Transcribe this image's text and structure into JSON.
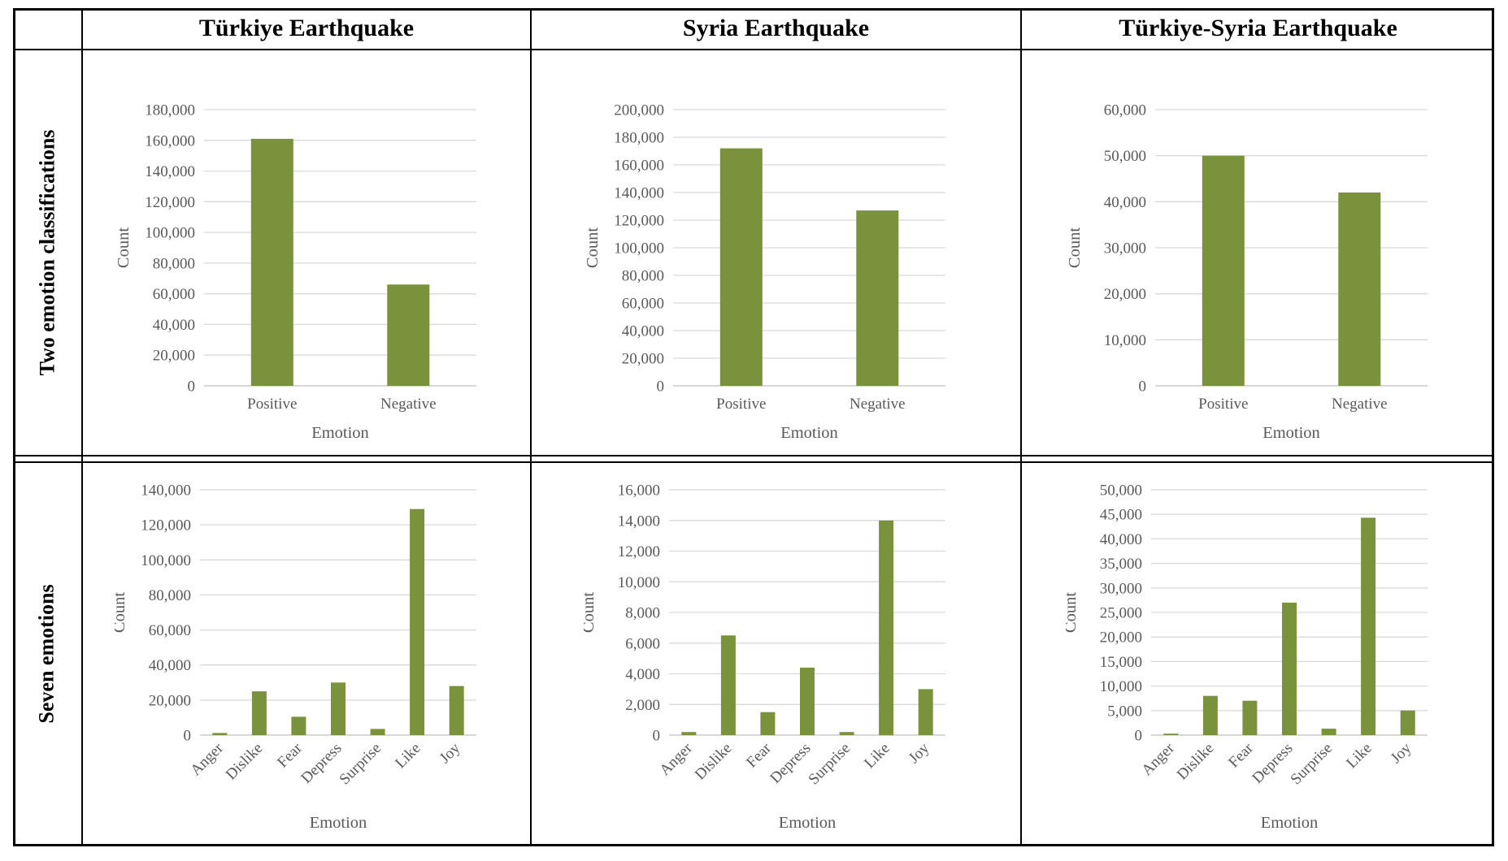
{
  "table": {
    "columns": [
      "Türkiye Earthquake",
      "Syria Earthquake",
      "Türkiye-Syria Earthquake"
    ],
    "rows": [
      "Two emotion classifications",
      "Seven emotions"
    ]
  },
  "style": {
    "bar_color": "#7A923C",
    "grid_color": "#D9D9D9",
    "axis_line_color": "#BFBFBF",
    "chart_text_color": "#595959",
    "border_color": "#000000",
    "header_text_color": "#000000",
    "background_color": "#FFFFFF"
  },
  "chart_data": [
    {
      "type": "bar",
      "column": "Türkiye Earthquake",
      "row": "Two emotion classifications",
      "title": "",
      "categories": [
        "Positive",
        "Negative"
      ],
      "values": [
        161000,
        66000
      ],
      "xlabel": "Emotion",
      "ylabel": "Count",
      "ylim": [
        0,
        180000
      ],
      "ytick_step": 20000,
      "grid": true,
      "legend": false
    },
    {
      "type": "bar",
      "column": "Syria Earthquake",
      "row": "Two emotion classifications",
      "title": "",
      "categories": [
        "Positive",
        "Negative"
      ],
      "values": [
        172000,
        127000
      ],
      "xlabel": "Emotion",
      "ylabel": "Count",
      "ylim": [
        0,
        200000
      ],
      "ytick_step": 20000,
      "grid": true,
      "legend": false
    },
    {
      "type": "bar",
      "column": "Türkiye-Syria Earthquake",
      "row": "Two emotion classifications",
      "title": "",
      "categories": [
        "Positive",
        "Negative"
      ],
      "values": [
        50000,
        42000
      ],
      "xlabel": "Emotion",
      "ylabel": "Count",
      "ylim": [
        0,
        60000
      ],
      "ytick_step": 10000,
      "grid": true,
      "legend": false
    },
    {
      "type": "bar",
      "column": "Türkiye Earthquake",
      "row": "Seven emotions",
      "title": "",
      "categories": [
        "Anger",
        "Dislike",
        "Fear",
        "Depress",
        "Surprise",
        "Like",
        "Joy"
      ],
      "values": [
        1200,
        25000,
        10500,
        30000,
        3500,
        129000,
        28000
      ],
      "xlabel": "Emotion",
      "ylabel": "Count",
      "ylim": [
        0,
        140000
      ],
      "ytick_step": 20000,
      "grid": true,
      "legend": false
    },
    {
      "type": "bar",
      "column": "Syria Earthquake",
      "row": "Seven emotions",
      "title": "",
      "categories": [
        "Anger",
        "Dislike",
        "Fear",
        "Depress",
        "Surprise",
        "Like",
        "Joy"
      ],
      "values": [
        200,
        6500,
        1500,
        4400,
        200,
        14000,
        3000
      ],
      "xlabel": "Emotion",
      "ylabel": "Count",
      "ylim": [
        0,
        16000
      ],
      "ytick_step": 2000,
      "grid": true,
      "legend": false
    },
    {
      "type": "bar",
      "column": "Türkiye-Syria Earthquake",
      "row": "Seven emotions",
      "title": "",
      "categories": [
        "Anger",
        "Dislike",
        "Fear",
        "Depress",
        "Surprise",
        "Like",
        "Joy"
      ],
      "values": [
        300,
        8000,
        7000,
        27000,
        1300,
        44300,
        5000
      ],
      "xlabel": "Emotion",
      "ylabel": "Count",
      "ylim": [
        0,
        50000
      ],
      "ytick_step": 5000,
      "grid": true,
      "legend": false
    }
  ]
}
